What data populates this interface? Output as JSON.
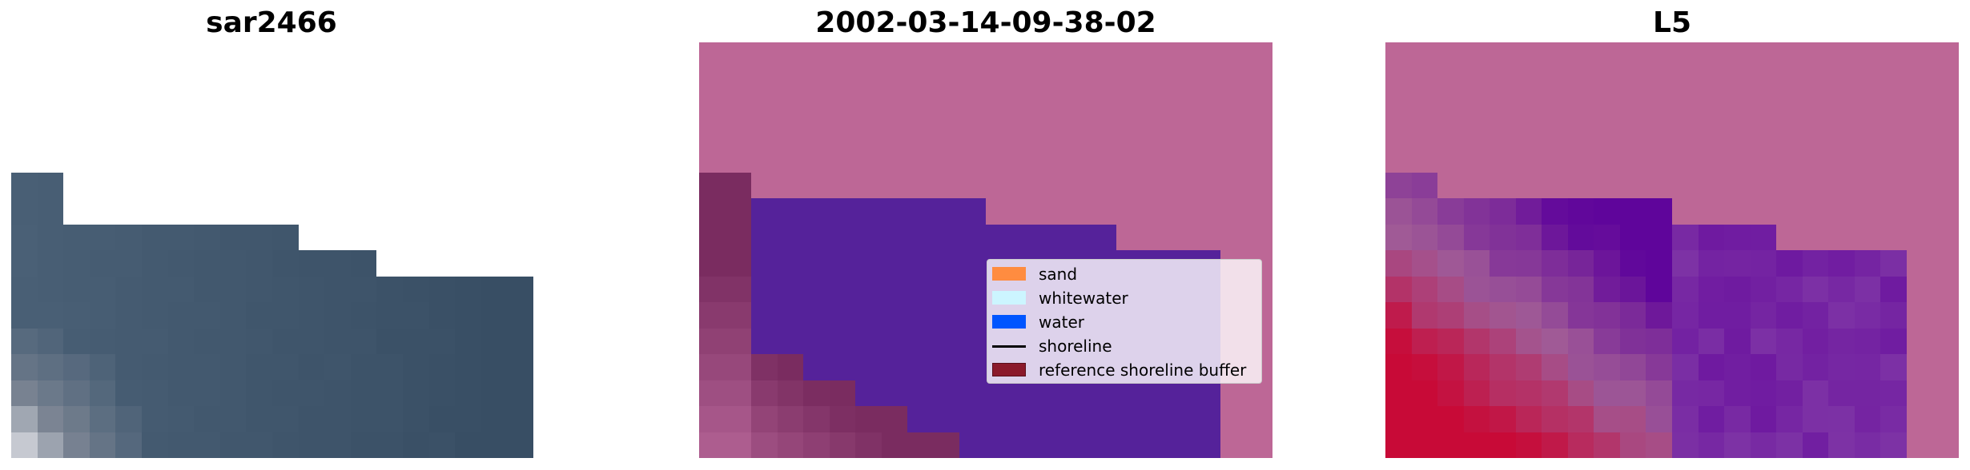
{
  "panels": {
    "left_title": "sar2466",
    "middle_title": "2002-03-14-09-38-02",
    "right_title": "L5"
  },
  "legend": {
    "items": [
      {
        "label": "sand",
        "color": "#ff8c40",
        "kind": "swatch"
      },
      {
        "label": "whitewater",
        "color": "#ccf5ff",
        "kind": "swatch"
      },
      {
        "label": "water",
        "color": "#0055ff",
        "kind": "swatch"
      },
      {
        "label": "shoreline",
        "color": "#000000",
        "kind": "line"
      },
      {
        "label": "reference shoreline buffer",
        "color": "#8b1a2b",
        "kind": "swatch"
      }
    ]
  },
  "colors": {
    "background_pink": "#bd6796",
    "water_overlay": "#55229a",
    "sand_overlay": "#7a2c60"
  }
}
